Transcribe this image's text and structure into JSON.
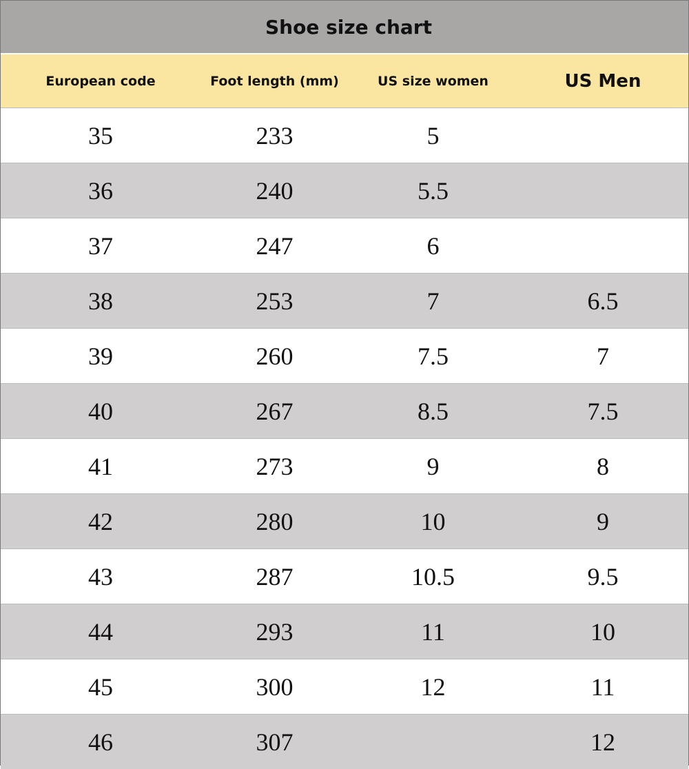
{
  "title": "Shoe size chart",
  "table": {
    "headers": [
      "European code",
      "Foot length (mm)",
      "US size women",
      "US Men"
    ],
    "rows": [
      [
        35,
        233,
        5,
        null
      ],
      [
        36,
        240,
        5.5,
        null
      ],
      [
        37,
        247,
        6,
        null
      ],
      [
        38,
        253,
        7,
        6.5
      ],
      [
        39,
        260,
        7.5,
        7
      ],
      [
        40,
        267,
        8.5,
        7.5
      ],
      [
        41,
        273,
        9,
        8
      ],
      [
        42,
        280,
        10,
        9
      ],
      [
        43,
        287,
        10.5,
        9.5
      ],
      [
        44,
        293,
        11,
        10
      ],
      [
        45,
        300,
        12,
        11
      ],
      [
        46,
        307,
        null,
        12
      ]
    ]
  }
}
